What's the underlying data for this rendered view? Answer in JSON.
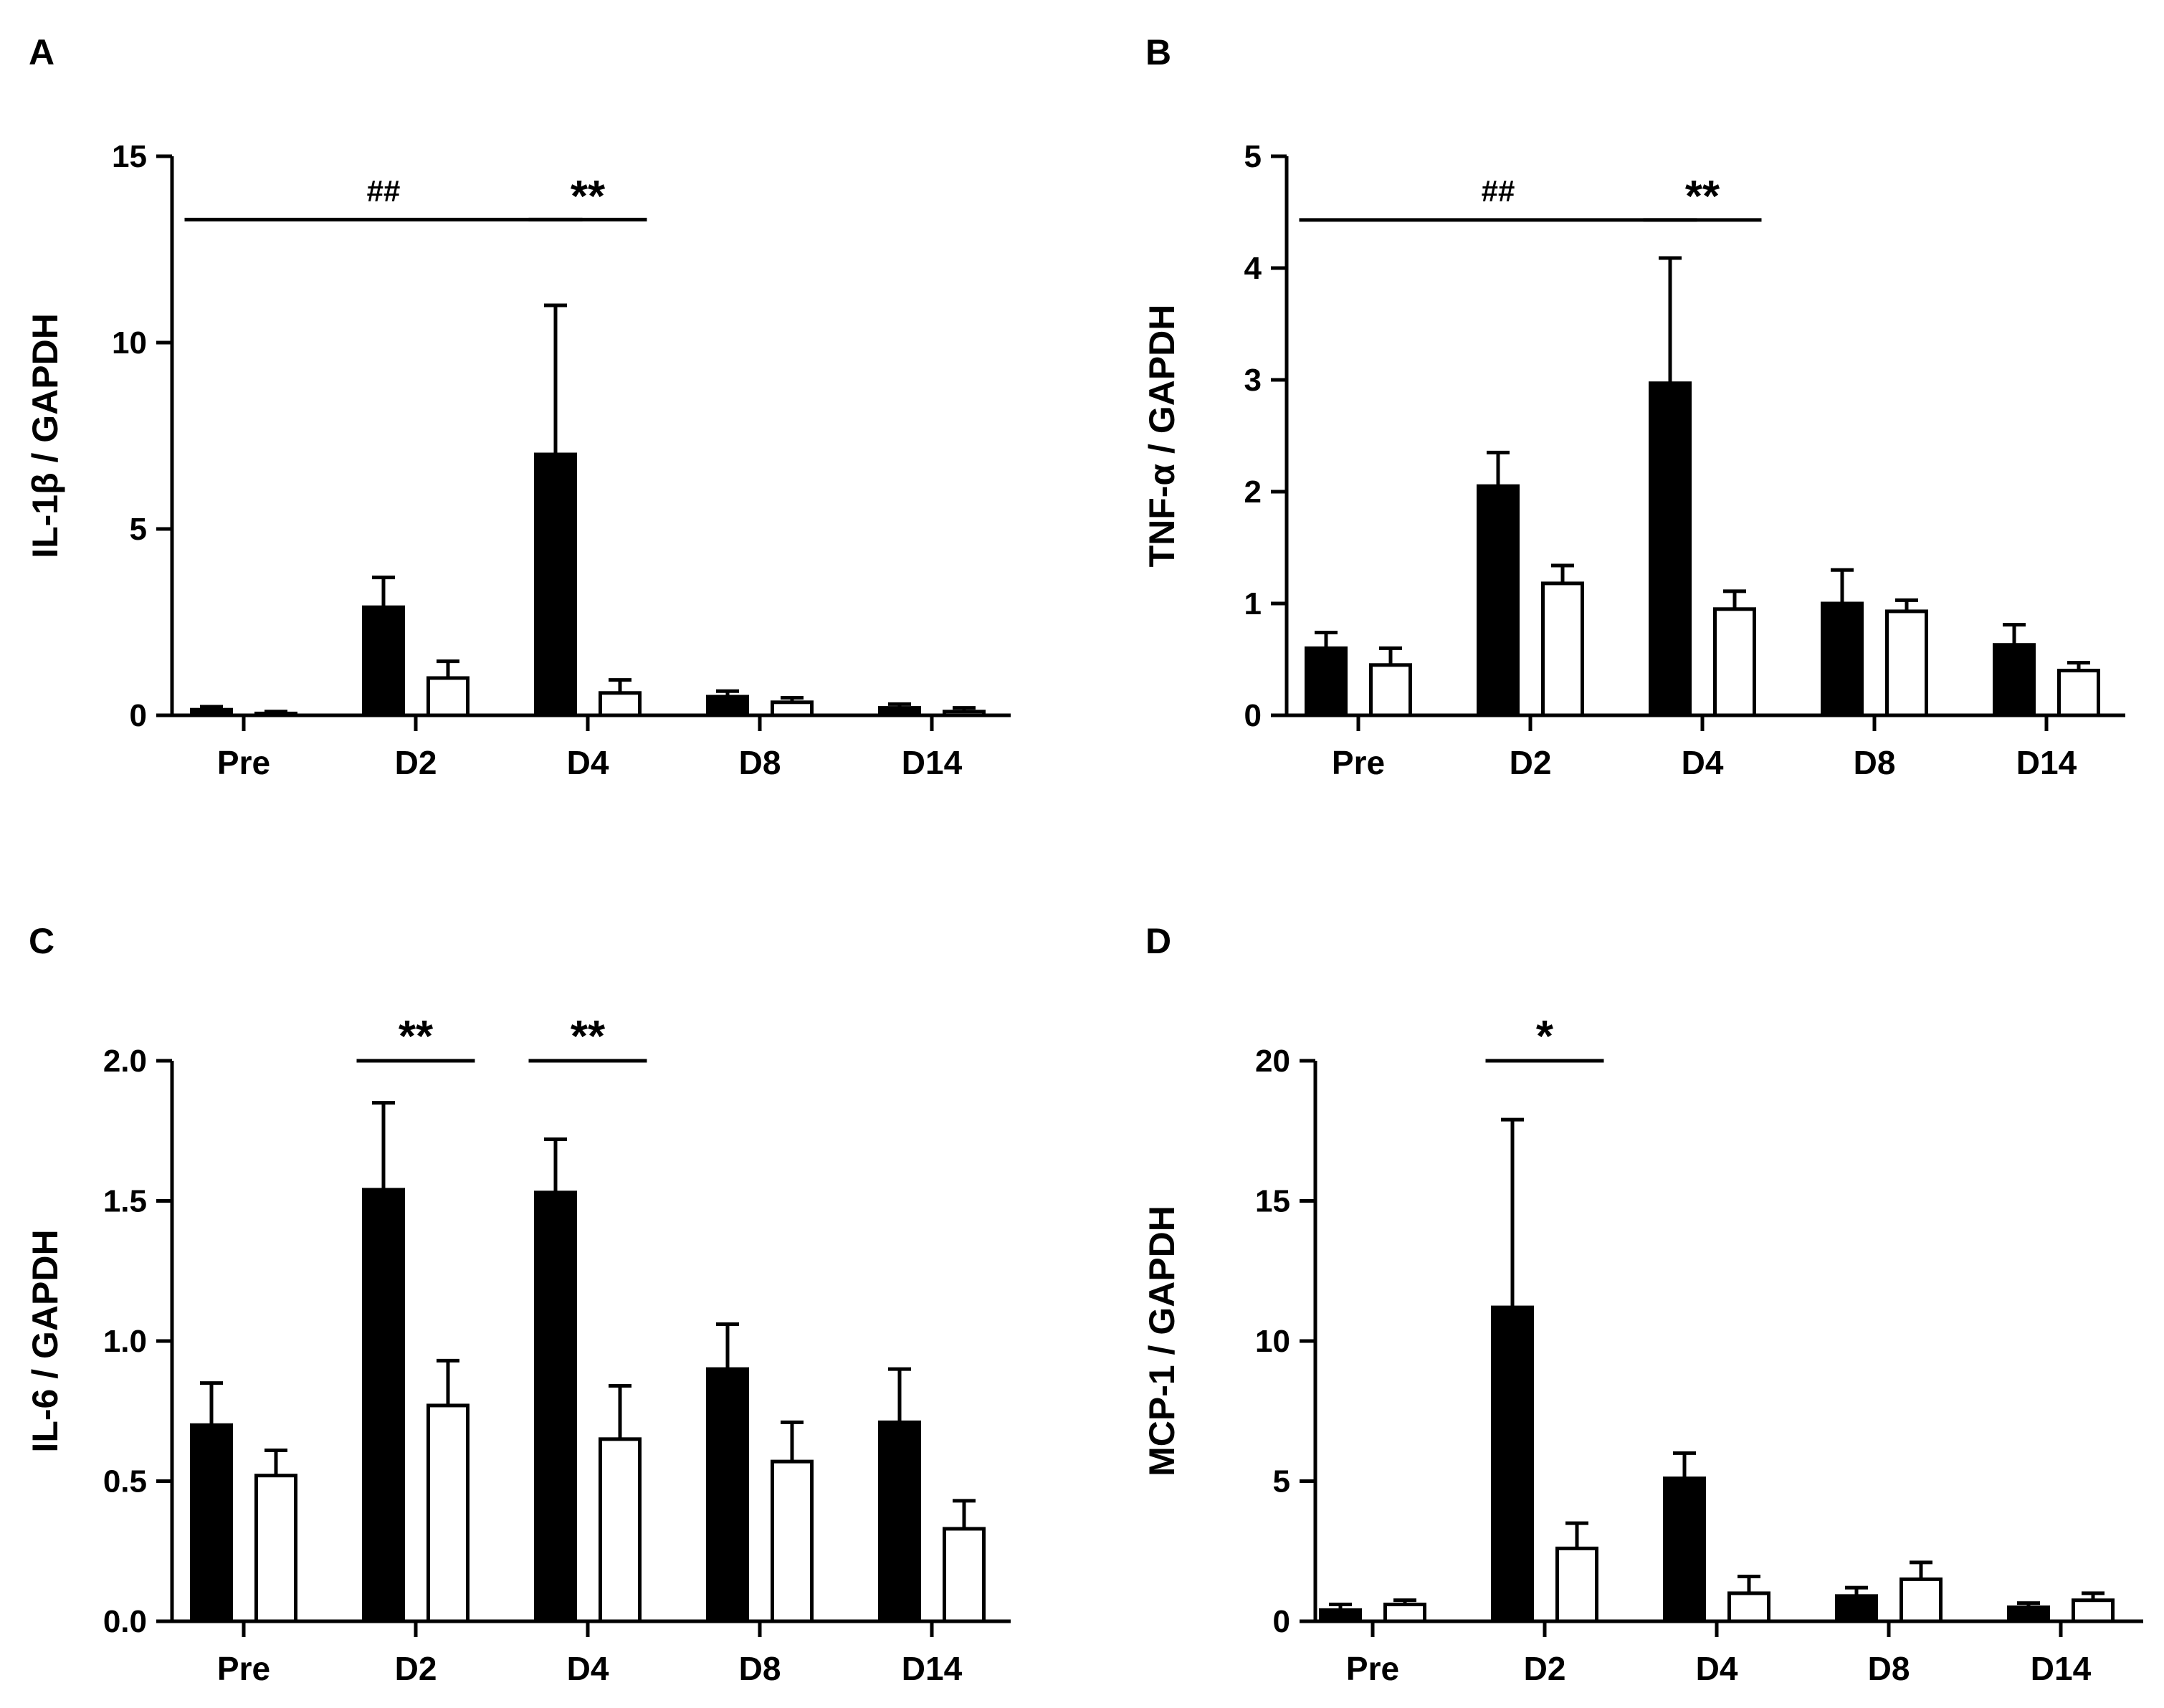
{
  "chart_data": [
    {
      "panel": "A",
      "type": "bar",
      "ylabel": "IL-1β / GAPDH",
      "categories": [
        "Pre",
        "D2",
        "D4",
        "D8",
        "D14"
      ],
      "ylim": [
        0,
        15
      ],
      "yticks": [
        "0",
        "5",
        "10",
        "15"
      ],
      "ytick_values": [
        0,
        5,
        10,
        15
      ],
      "series": [
        {
          "name": "filled",
          "values": [
            0.15,
            2.9,
            7.0,
            0.5,
            0.2
          ],
          "errors": [
            0.08,
            0.8,
            4.0,
            0.15,
            0.1
          ]
        },
        {
          "name": "open",
          "values": [
            0.05,
            1.0,
            0.6,
            0.35,
            0.1
          ],
          "errors": [
            0.05,
            0.45,
            0.35,
            0.12,
            0.1
          ]
        }
      ],
      "annotations": [
        {
          "text": "##",
          "from_cat": 0,
          "from_series": 0,
          "to_cat": 2,
          "to_series": 0,
          "y": 13.3,
          "text_y": 14.1
        },
        {
          "text": "**",
          "from_cat": 2,
          "from_series": 0,
          "to_cat": 2,
          "to_series": 1,
          "y": 13.3,
          "text_y": 14.1
        }
      ]
    },
    {
      "panel": "B",
      "type": "bar",
      "ylabel": "TNF-α / GAPDH",
      "categories": [
        "Pre",
        "D2",
        "D4",
        "D8",
        "D14"
      ],
      "ylim": [
        0,
        5
      ],
      "yticks": [
        "0",
        "1",
        "2",
        "3",
        "4",
        "5"
      ],
      "ytick_values": [
        0,
        1,
        2,
        3,
        4,
        5
      ],
      "series": [
        {
          "name": "filled",
          "values": [
            0.6,
            2.05,
            2.97,
            1.0,
            0.63
          ],
          "errors": [
            0.14,
            0.3,
            1.12,
            0.3,
            0.18
          ]
        },
        {
          "name": "open",
          "values": [
            0.45,
            1.18,
            0.95,
            0.93,
            0.4
          ],
          "errors": [
            0.15,
            0.16,
            0.16,
            0.1,
            0.07
          ]
        }
      ],
      "annotations": [
        {
          "text": "##",
          "from_cat": 0,
          "from_series": 0,
          "to_cat": 2,
          "to_series": 0,
          "y": 4.43,
          "text_y": 4.7
        },
        {
          "text": "**",
          "from_cat": 2,
          "from_series": 0,
          "to_cat": 2,
          "to_series": 1,
          "y": 4.43,
          "text_y": 4.7
        }
      ]
    },
    {
      "panel": "C",
      "type": "bar",
      "ylabel": "IL-6 / GAPDH",
      "categories": [
        "Pre",
        "D2",
        "D4",
        "D8",
        "D14"
      ],
      "ylim": [
        0,
        2
      ],
      "yticks": [
        "0.0",
        "0.5",
        "1.0",
        "1.5",
        "2.0"
      ],
      "ytick_values": [
        0,
        0.5,
        1,
        1.5,
        2
      ],
      "series": [
        {
          "name": "filled",
          "values": [
            0.7,
            1.54,
            1.53,
            0.9,
            0.71
          ],
          "errors": [
            0.15,
            0.31,
            0.19,
            0.16,
            0.19
          ]
        },
        {
          "name": "open",
          "values": [
            0.52,
            0.77,
            0.65,
            0.57,
            0.33
          ],
          "errors": [
            0.09,
            0.16,
            0.19,
            0.14,
            0.1
          ]
        }
      ],
      "annotations": [
        {
          "text": "**",
          "from_cat": 1,
          "from_series": 0,
          "to_cat": 1,
          "to_series": 1,
          "y": 2.0,
          "text_y": 2.11
        },
        {
          "text": "**",
          "from_cat": 2,
          "from_series": 0,
          "to_cat": 2,
          "to_series": 1,
          "y": 2.0,
          "text_y": 2.11
        }
      ]
    },
    {
      "panel": "D",
      "type": "bar",
      "ylabel": "MCP-1 / GAPDH",
      "categories": [
        "Pre",
        "D2",
        "D4",
        "D8",
        "D14"
      ],
      "ylim": [
        0,
        20
      ],
      "yticks": [
        "0",
        "5",
        "10",
        "15",
        "20"
      ],
      "ytick_values": [
        0,
        5,
        10,
        15,
        20
      ],
      "series": [
        {
          "name": "filled",
          "values": [
            0.4,
            11.2,
            5.1,
            0.9,
            0.5
          ],
          "errors": [
            0.2,
            6.7,
            0.9,
            0.3,
            0.15
          ]
        },
        {
          "name": "open",
          "values": [
            0.6,
            2.6,
            1.0,
            1.5,
            0.75
          ],
          "errors": [
            0.15,
            0.9,
            0.6,
            0.6,
            0.25
          ]
        }
      ],
      "annotations": [
        {
          "text": "*",
          "from_cat": 1,
          "from_series": 0,
          "to_cat": 1,
          "to_series": 1,
          "y": 20.0,
          "text_y": 21.1
        }
      ]
    }
  ]
}
